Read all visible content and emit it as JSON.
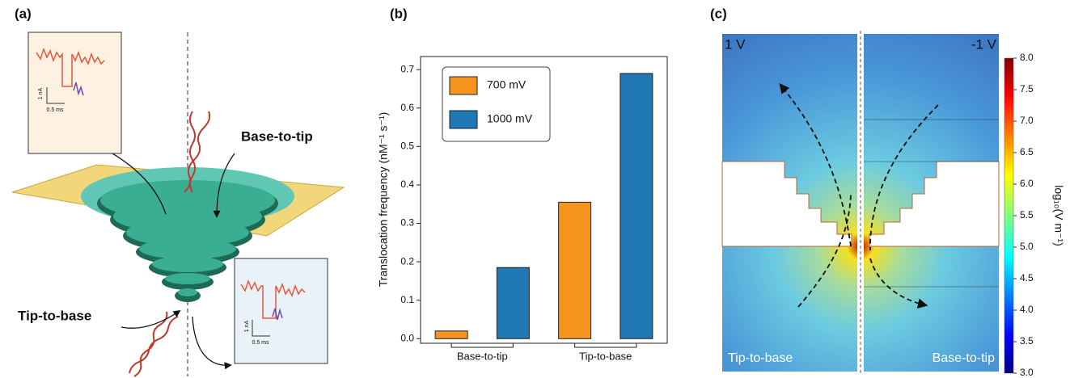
{
  "panel_a": {
    "label": "(a)",
    "base_to_tip": "Base-to-tip",
    "tip_to_base": "Tip-to-base",
    "inset_top": {
      "current": "1 nA",
      "time": "0.5 ms"
    },
    "inset_bottom": {
      "current": "1 nA",
      "time": "0.5 ms"
    }
  },
  "panel_b": {
    "label": "(b)"
  },
  "chart_data": {
    "type": "bar",
    "y_label": "Translocation frequency (nM⁻¹ s⁻¹)",
    "categories": [
      "Base-to-tip",
      "Tip-to-base"
    ],
    "series": [
      {
        "name": "700 mV",
        "color": "#f7941d",
        "values": [
          0.02,
          0.355
        ]
      },
      {
        "name": "1000 mV",
        "color": "#1f77b4",
        "values": [
          0.185,
          0.69
        ]
      }
    ],
    "ylim": [
      -0.012,
      0.734
    ],
    "yticks": [
      {
        "value": 0,
        "label": "0.0"
      },
      0.1,
      0.2,
      0.3,
      0.4,
      0.5,
      0.6,
      0.7
    ],
    "legend": "upper-left",
    "grid": false
  },
  "panel_c": {
    "label": "(c)",
    "left_voltage": "1 V",
    "right_voltage": "-1 V",
    "left_caption": "Tip-to-base",
    "right_caption": "Base-to-tip",
    "colorbar": {
      "label": "log₁₀(V m⁻¹)",
      "ticks": [
        "8.0",
        "7.5",
        "7.0",
        "6.5",
        "6.0",
        "5.5",
        "5.0",
        "4.5",
        "4.0",
        "3.5",
        "3.0"
      ]
    }
  }
}
